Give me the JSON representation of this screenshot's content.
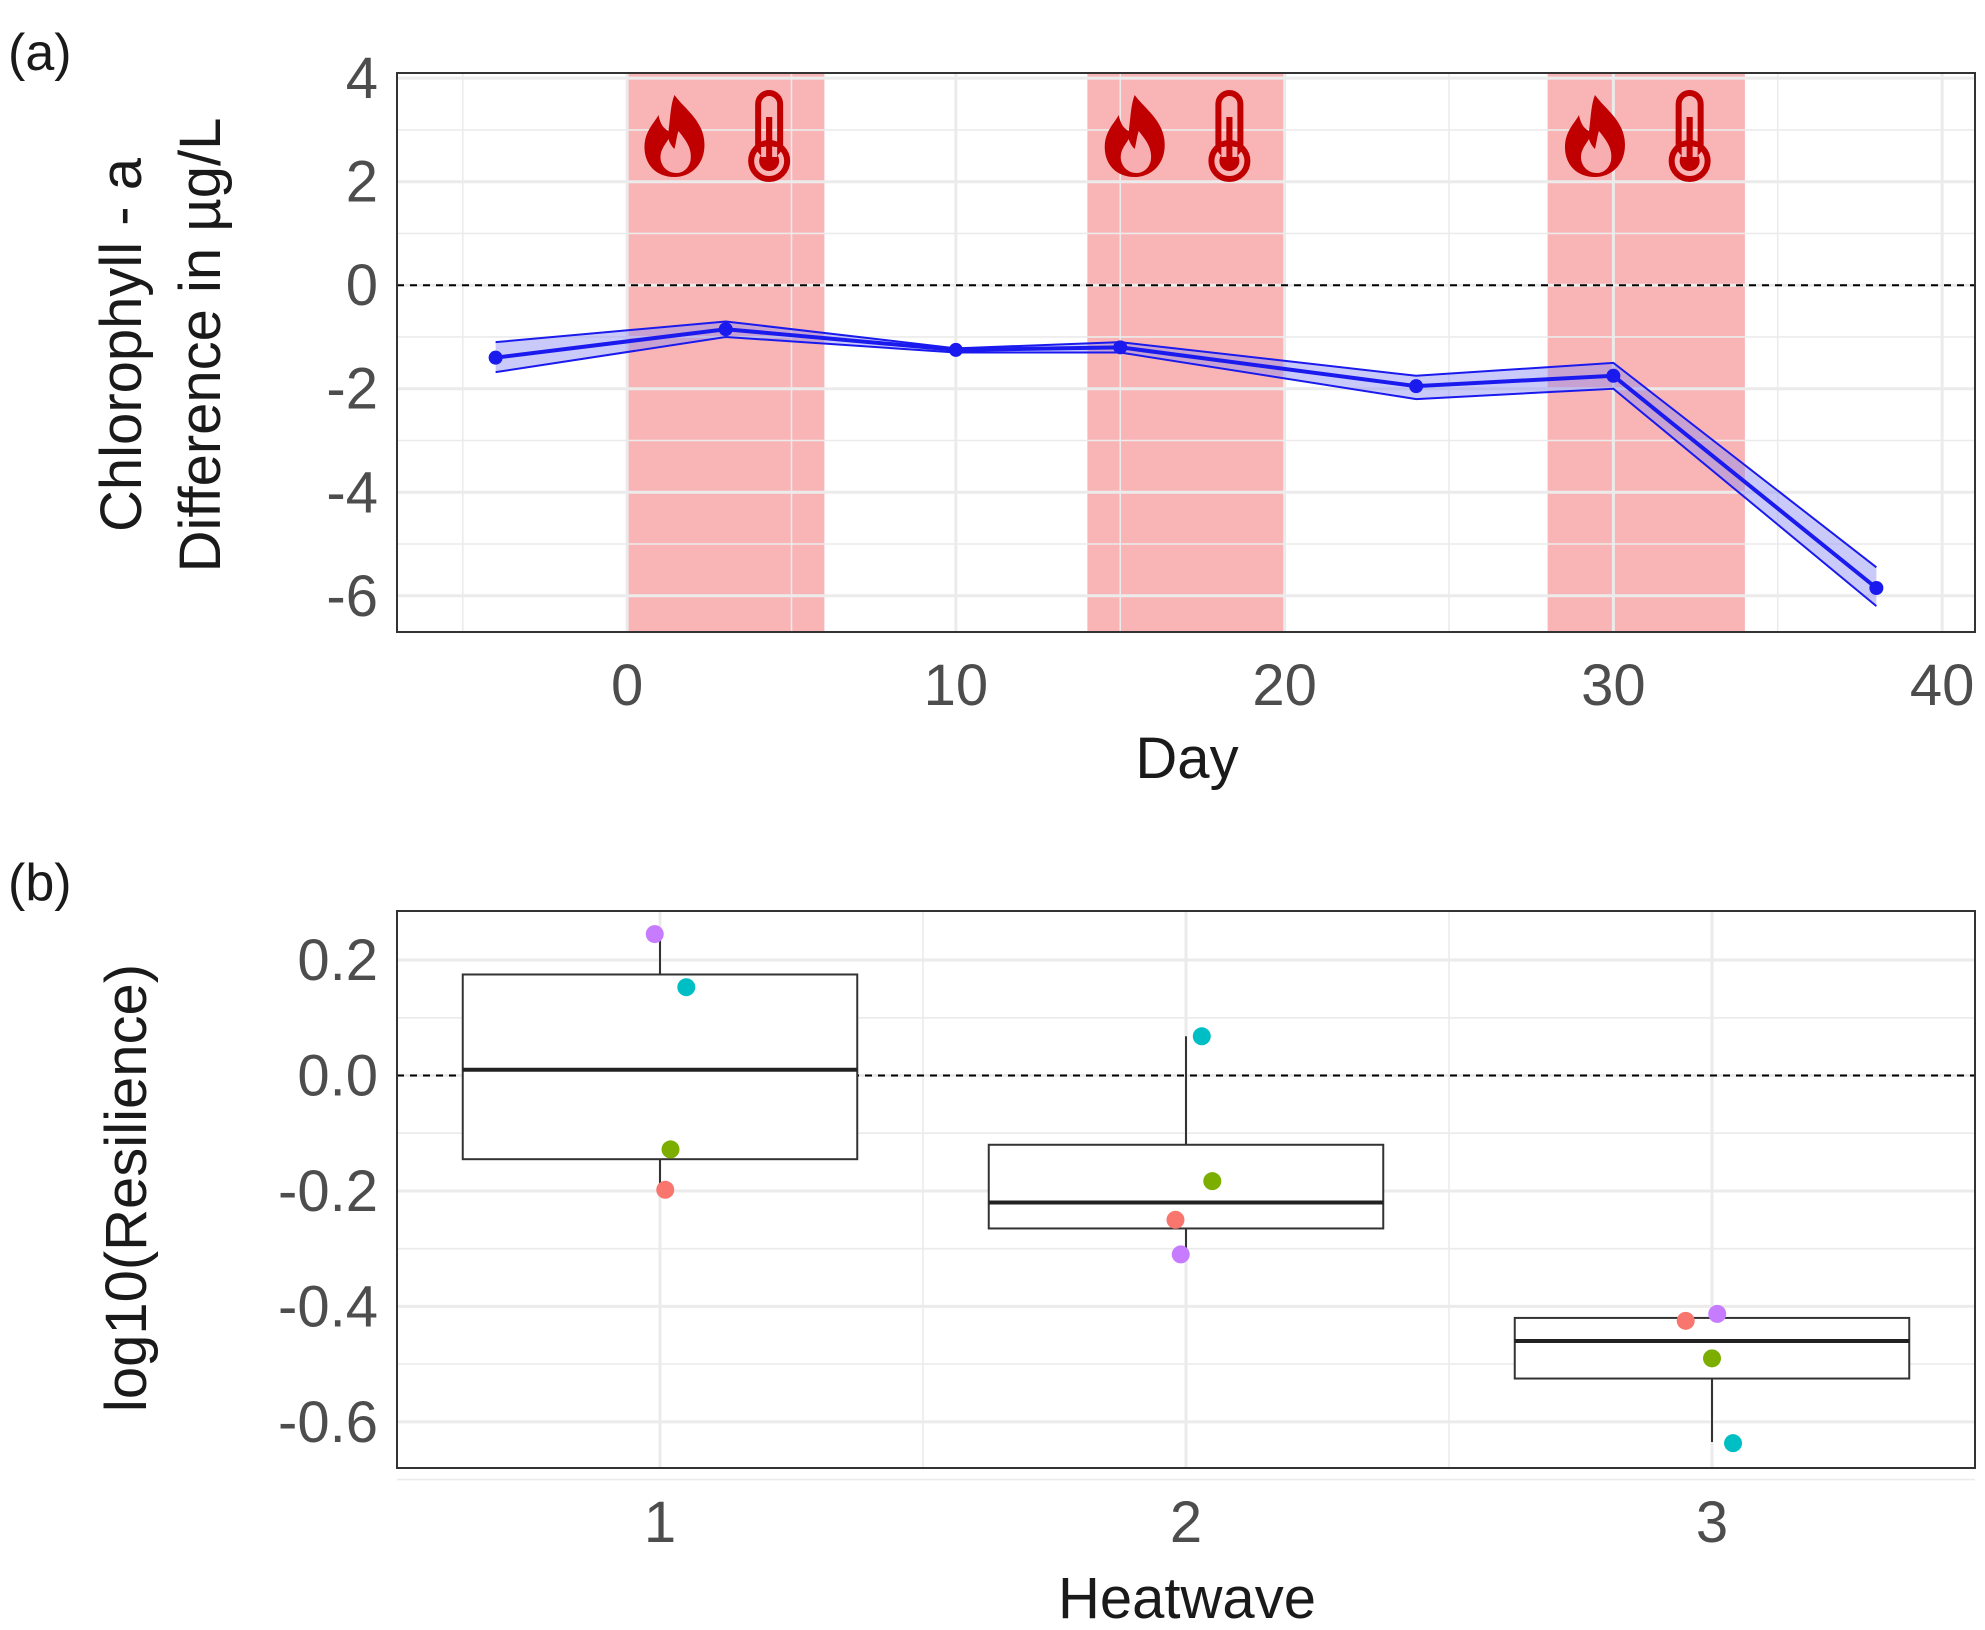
{
  "chart_data": [
    {
      "panel": "(a)",
      "type": "line",
      "xlabel": "Day",
      "ylabel": [
        "Chlorophyll - a",
        "Difference in µg/L"
      ],
      "xlim": [
        -7,
        41
      ],
      "ylim": [
        -6.7,
        4.1
      ],
      "xticks": [
        0,
        10,
        20,
        30,
        40
      ],
      "yticks": [
        4,
        2,
        0,
        -2,
        -4,
        -6
      ],
      "grid": true,
      "reference_line_y": 0,
      "heatwave_periods": [
        [
          0,
          6
        ],
        [
          14,
          20
        ],
        [
          28,
          34
        ]
      ],
      "heatwave_icons": [
        "fire-icon",
        "thermometer-icon"
      ],
      "heatwave_color": "#f8aeb0",
      "icon_color": "#c00000",
      "line_color": "#1a1aee",
      "band_color": "#8a8af5",
      "series": [
        {
          "x": [
            -4,
            3,
            10,
            15,
            24,
            30,
            38
          ],
          "y": [
            -1.4,
            -0.85,
            -1.25,
            -1.2,
            -1.95,
            -1.75,
            -5.85
          ],
          "lower": [
            -1.68,
            -1.0,
            -1.3,
            -1.3,
            -2.2,
            -2.0,
            -6.2
          ],
          "upper": [
            -1.1,
            -0.7,
            -1.22,
            -1.1,
            -1.75,
            -1.5,
            -5.45
          ]
        }
      ]
    },
    {
      "panel": "(b)",
      "type": "box",
      "xlabel": "Heatwave",
      "ylabel": "log10(Resilience)",
      "categories": [
        "1",
        "2",
        "3"
      ],
      "ylim": [
        -0.68,
        0.285
      ],
      "yticks": [
        0.2,
        0.0,
        -0.2,
        -0.4,
        -0.6
      ],
      "ytick_labels": [
        "0.2",
        "0.0",
        "-0.2",
        "-0.4",
        "-0.6"
      ],
      "grid": true,
      "reference_line_y": 0,
      "boxes": [
        {
          "category": "1",
          "q1": -0.145,
          "median": 0.01,
          "q3": 0.175,
          "whisker_low": -0.2,
          "whisker_high": 0.245
        },
        {
          "category": "2",
          "q1": -0.265,
          "median": -0.22,
          "q3": -0.12,
          "whisker_low": -0.31,
          "whisker_high": 0.068
        },
        {
          "category": "3",
          "q1": -0.525,
          "median": -0.46,
          "q3": -0.42,
          "whisker_low": -0.635,
          "whisker_high": -0.413
        }
      ],
      "points": [
        {
          "category": "1",
          "y": 0.245,
          "color": "#c77cff",
          "offset": -0.01
        },
        {
          "category": "1",
          "y": 0.153,
          "color": "#00bfc4",
          "offset": 0.05
        },
        {
          "category": "1",
          "y": -0.128,
          "color": "#7cae00",
          "offset": 0.02
        },
        {
          "category": "1",
          "y": -0.198,
          "color": "#f8766d",
          "offset": 0.01
        },
        {
          "category": "2",
          "y": 0.068,
          "color": "#00bfc4",
          "offset": 0.03
        },
        {
          "category": "2",
          "y": -0.183,
          "color": "#7cae00",
          "offset": 0.05
        },
        {
          "category": "2",
          "y": -0.25,
          "color": "#f8766d",
          "offset": -0.02
        },
        {
          "category": "2",
          "y": -0.31,
          "color": "#c77cff",
          "offset": -0.01
        },
        {
          "category": "3",
          "y": -0.413,
          "color": "#c77cff",
          "offset": 0.01
        },
        {
          "category": "3",
          "y": -0.425,
          "color": "#f8766d",
          "offset": -0.05
        },
        {
          "category": "3",
          "y": -0.49,
          "color": "#7cae00",
          "offset": 0.0
        },
        {
          "category": "3",
          "y": -0.637,
          "color": "#00bfc4",
          "offset": 0.04
        }
      ]
    }
  ]
}
